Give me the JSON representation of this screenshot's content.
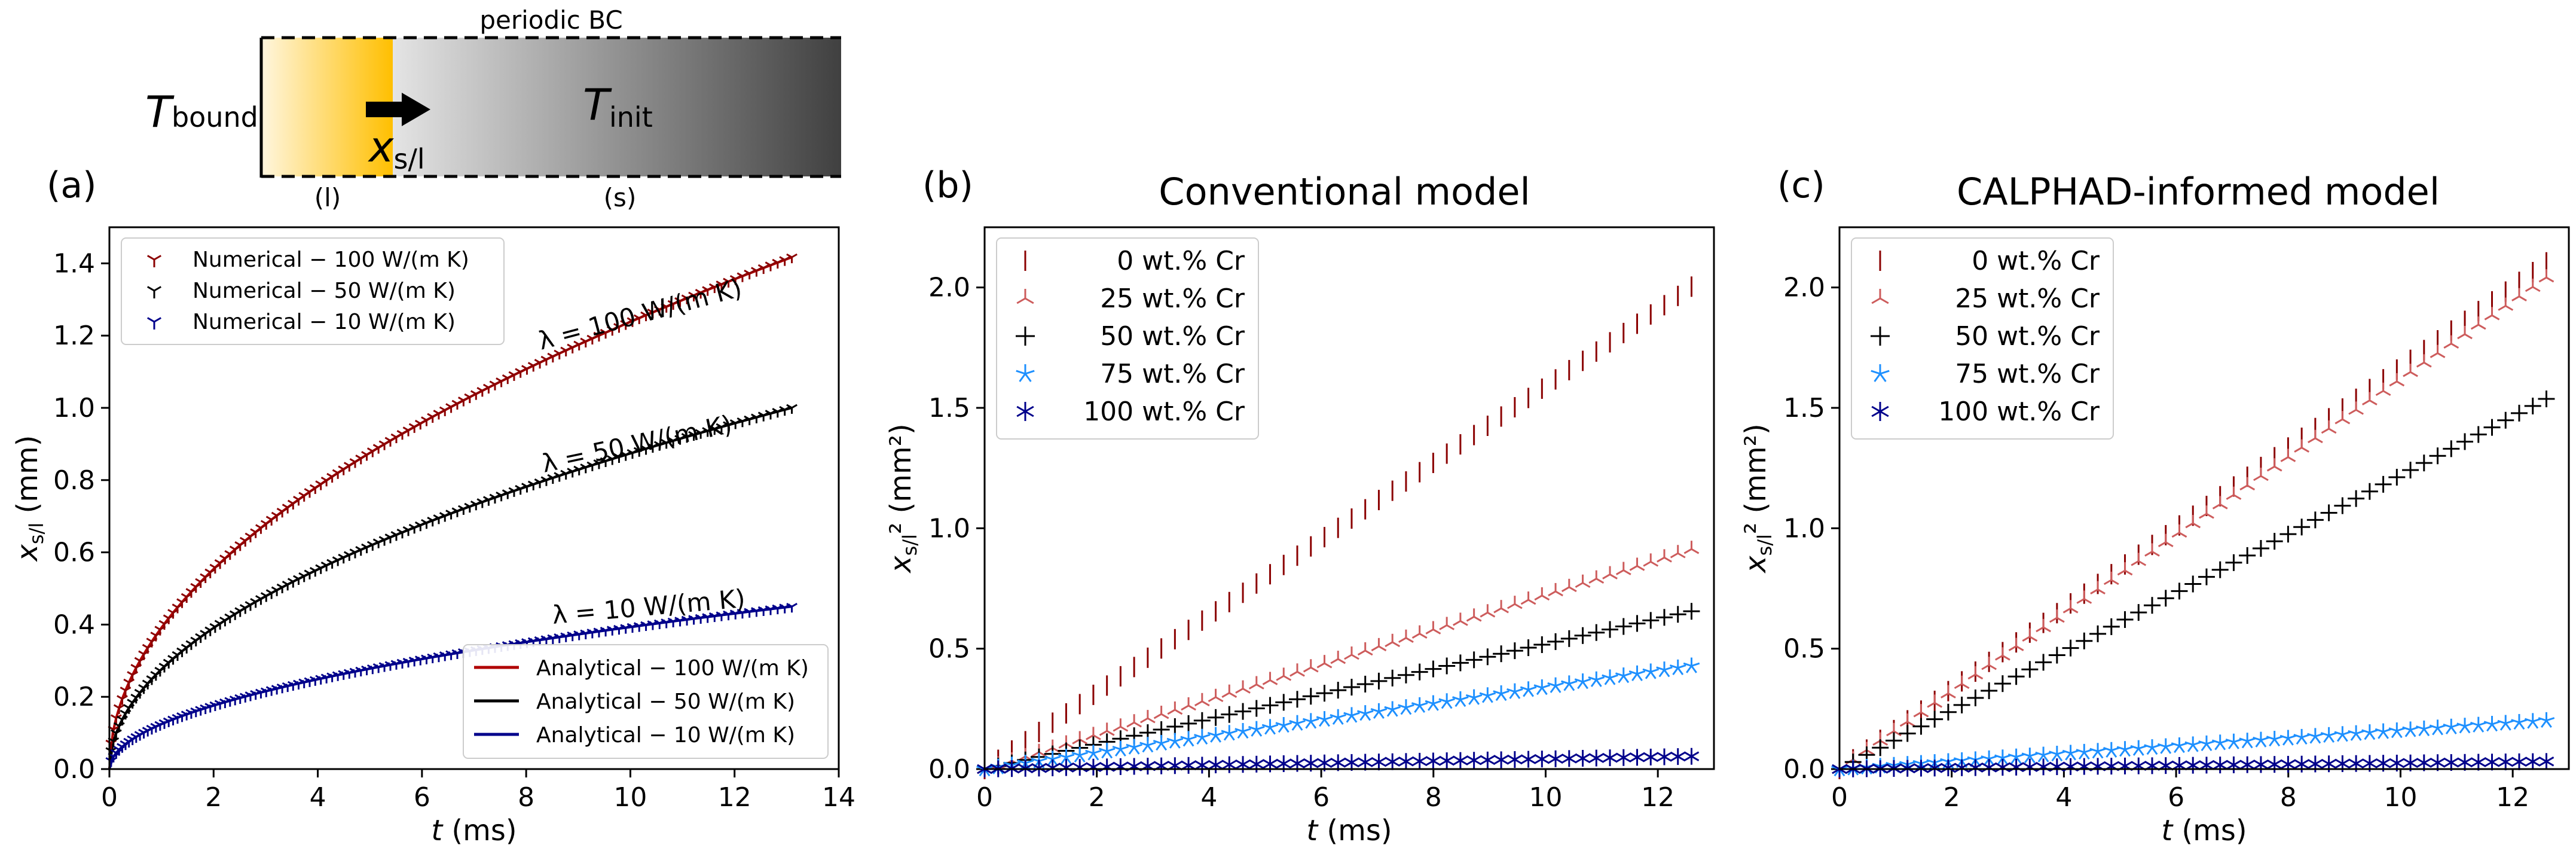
{
  "schematic": {
    "top_label": "periodic BC",
    "t_bound": "T",
    "t_bound_sub": "bound",
    "t_init": "T",
    "t_init_sub": "init",
    "front": "x",
    "front_sub": "s/l",
    "liquid_label": "(l)",
    "solid_label": "(s)"
  },
  "chart_data": [
    {
      "id": "a",
      "type": "line",
      "panel_label": "(a)",
      "title": "",
      "xlabel": "t (ms)",
      "ylabel": "x_s/l (mm)",
      "xlim": [
        0,
        14
      ],
      "ylim": [
        0,
        1.5
      ],
      "xticks": [
        "0",
        "2",
        "4",
        "6",
        "8",
        "10",
        "12",
        "14"
      ],
      "yticks": [
        "0.0",
        "0.2",
        "0.4",
        "0.6",
        "0.8",
        "1.0",
        "1.2",
        "1.4"
      ],
      "x_end": 13.1,
      "series": [
        {
          "name": "Numerical − 100 W/(m K)",
          "kind": "numerical",
          "marker": "tri-up",
          "color": "#8b0000",
          "coef": 0.3915
        },
        {
          "name": "Numerical − 50 W/(m K)",
          "kind": "numerical",
          "marker": "tri-up",
          "color": "#000000",
          "coef": 0.2763
        },
        {
          "name": "Numerical − 10 W/(m K)",
          "kind": "numerical",
          "marker": "tri-up",
          "color": "#00008b",
          "coef": 0.1243
        },
        {
          "name": "Analytical − 100 W/(m K)",
          "kind": "analytical",
          "color": "#b00000",
          "coef": 0.3915
        },
        {
          "name": "Analytical − 50 W/(m K)",
          "kind": "analytical",
          "color": "#000000",
          "coef": 0.2763
        },
        {
          "name": "Analytical − 10 W/(m K)",
          "kind": "analytical",
          "color": "#00008b",
          "coef": 0.1243
        }
      ],
      "annotations": [
        "λ = 100 W/(m K)",
        "λ = 50 W/(m K)",
        "λ = 10 W/(m K)"
      ],
      "legend_numerical": "upper-left",
      "legend_analytical": "lower-right"
    },
    {
      "id": "b",
      "type": "scatter",
      "panel_label": "(b)",
      "title": "Conventional model",
      "xlabel": "t (ms)",
      "ylabel": "x_s/l² (mm²)",
      "xlim": [
        0,
        13.0
      ],
      "ylim": [
        0,
        2.25
      ],
      "xticks": [
        "0",
        "2",
        "4",
        "6",
        "8",
        "10",
        "12"
      ],
      "yticks": [
        "0.0",
        "0.5",
        "1.0",
        "1.5",
        "2.0"
      ],
      "x_end": 12.6,
      "series": [
        {
          "name": "0 wt.% Cr",
          "marker": "vline",
          "color": "#8b0000",
          "slope": 0.159
        },
        {
          "name": "25 wt.% Cr",
          "marker": "tri",
          "color": "#cd5c5c",
          "slope": 0.0725
        },
        {
          "name": "50 wt.% Cr",
          "marker": "plus",
          "color": "#000000",
          "slope": 0.052
        },
        {
          "name": "75 wt.% Cr",
          "marker": "star",
          "color": "#1e90ff",
          "slope": 0.034
        },
        {
          "name": "100 wt.% Cr",
          "marker": "asterisk",
          "color": "#00008b",
          "slope": 0.0042
        }
      ],
      "legend": "upper-left"
    },
    {
      "id": "c",
      "type": "scatter",
      "panel_label": "(c)",
      "title": "CALPHAD-informed model",
      "xlabel": "t (ms)",
      "ylabel": "x_s/l² (mm²)",
      "xlim": [
        0,
        13.0
      ],
      "ylim": [
        0,
        2.25
      ],
      "xticks": [
        "0",
        "2",
        "4",
        "6",
        "8",
        "10",
        "12"
      ],
      "yticks": [
        "0.0",
        "0.5",
        "1.0",
        "1.5",
        "2.0"
      ],
      "x_end": 12.6,
      "series": [
        {
          "name": "0 wt.% Cr",
          "marker": "vline",
          "color": "#8b0000",
          "slope": 0.167
        },
        {
          "name": "25 wt.% Cr",
          "marker": "tri",
          "color": "#cd5c5c",
          "slope": 0.162
        },
        {
          "name": "50 wt.% Cr",
          "marker": "plus",
          "color": "#000000",
          "slope": 0.122
        },
        {
          "name": "75 wt.% Cr",
          "marker": "star",
          "color": "#1e90ff",
          "slope": 0.016
        },
        {
          "name": "100 wt.% Cr",
          "marker": "asterisk",
          "color": "#00008b",
          "slope": 0.0025
        }
      ],
      "legend": "upper-left"
    }
  ]
}
